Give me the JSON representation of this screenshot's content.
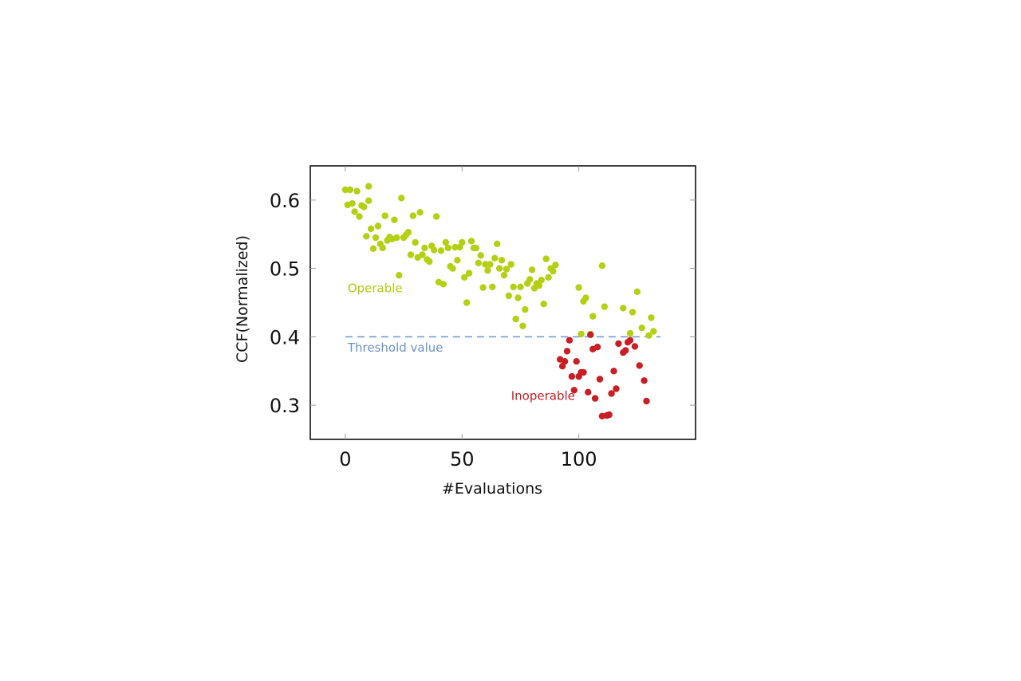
{
  "chart_data": {
    "type": "scatter",
    "title": "",
    "xlabel": "#Evaluations",
    "ylabel": "CCF(Normalized)",
    "xlim": [
      -15,
      150
    ],
    "ylim": [
      0.25,
      0.65
    ],
    "xticks": [
      0,
      50,
      100
    ],
    "yticks": [
      0.3,
      0.4,
      0.5,
      0.6
    ],
    "xtick_labels": [
      "0",
      "50",
      "100"
    ],
    "ytick_labels": [
      "0.3",
      "0.4",
      "0.5",
      "0.6"
    ],
    "grid": false,
    "legend": "none",
    "threshold": {
      "value": 0.4,
      "label": "Threshold value",
      "x_range": [
        0,
        135
      ],
      "color": "#6b93c9"
    },
    "annotations": [
      {
        "text": "Operable",
        "x": 1,
        "y": 0.465,
        "color": "#b2cc0e"
      },
      {
        "text": "Threshold value",
        "x": 1,
        "y": 0.378,
        "color": "#6b93c9"
      },
      {
        "text": "Inoperable",
        "x": 71,
        "y": 0.308,
        "color": "#c81e24"
      }
    ],
    "series": [
      {
        "color": "#b5cf12",
        "x": [
          0,
          1,
          2,
          3,
          4,
          5,
          6,
          7,
          8,
          9,
          10,
          10,
          11,
          12,
          13,
          14,
          15,
          16,
          17,
          18,
          19,
          20,
          21,
          22,
          23,
          24,
          25,
          26,
          27,
          28,
          29,
          30,
          31,
          32,
          33,
          34,
          35,
          36,
          37,
          38,
          39,
          40,
          41,
          42,
          43,
          44,
          45,
          46,
          47,
          48,
          49,
          50,
          51,
          52,
          53,
          54,
          55,
          56,
          57,
          58,
          59,
          60,
          61,
          62,
          63,
          64,
          65,
          66,
          67,
          68,
          69,
          70,
          71,
          72,
          73,
          74,
          75,
          76,
          77,
          78,
          79,
          80,
          81,
          82,
          83,
          84,
          85,
          86,
          87,
          88,
          89,
          90,
          100,
          101,
          102,
          103,
          105,
          106,
          110,
          111,
          119,
          122,
          123,
          125,
          127,
          130,
          131,
          132
        ],
        "y": [
          0.615,
          0.593,
          0.615,
          0.595,
          0.583,
          0.613,
          0.576,
          0.592,
          0.59,
          0.547,
          0.62,
          0.599,
          0.558,
          0.529,
          0.545,
          0.562,
          0.536,
          0.53,
          0.577,
          0.541,
          0.546,
          0.543,
          0.571,
          0.545,
          0.49,
          0.603,
          0.545,
          0.549,
          0.553,
          0.52,
          0.577,
          0.538,
          0.516,
          0.582,
          0.52,
          0.53,
          0.513,
          0.51,
          0.533,
          0.527,
          0.576,
          0.48,
          0.526,
          0.477,
          0.538,
          0.53,
          0.503,
          0.5,
          0.531,
          0.512,
          0.531,
          0.538,
          0.487,
          0.45,
          0.493,
          0.54,
          0.53,
          0.53,
          0.508,
          0.519,
          0.472,
          0.506,
          0.497,
          0.506,
          0.473,
          0.515,
          0.536,
          0.5,
          0.512,
          0.49,
          0.499,
          0.46,
          0.506,
          0.473,
          0.426,
          0.457,
          0.473,
          0.416,
          0.44,
          0.478,
          0.484,
          0.498,
          0.471,
          0.478,
          0.475,
          0.483,
          0.448,
          0.514,
          0.487,
          0.5,
          0.496,
          0.505,
          0.472,
          0.404,
          0.452,
          0.457,
          0.404,
          0.43,
          0.504,
          0.444,
          0.442,
          0.405,
          0.436,
          0.466,
          0.413,
          0.402,
          0.428,
          0.408
        ]
      },
      {
        "color": "#c81e24",
        "x": [
          92,
          93,
          94,
          95,
          96,
          97,
          98,
          99,
          100,
          101,
          102,
          104,
          105,
          106,
          107,
          108,
          109,
          110,
          112,
          113,
          114,
          115,
          116,
          117,
          119,
          120,
          121,
          122,
          124,
          126,
          128,
          129
        ],
        "y": [
          0.367,
          0.357,
          0.364,
          0.379,
          0.395,
          0.342,
          0.322,
          0.364,
          0.342,
          0.348,
          0.348,
          0.319,
          0.403,
          0.382,
          0.31,
          0.385,
          0.338,
          0.284,
          0.285,
          0.286,
          0.317,
          0.35,
          0.324,
          0.39,
          0.377,
          0.38,
          0.392,
          0.395,
          0.386,
          0.358,
          0.336,
          0.306
        ]
      }
    ]
  }
}
